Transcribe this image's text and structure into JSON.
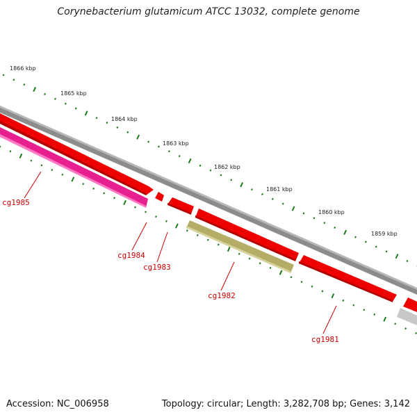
{
  "title": "Corynebacterium glutamicum ATCC 13032, complete genome",
  "ruler": {
    "labels": [
      "1866 kbp",
      "1865 kbp",
      "1864 kbp",
      "1863 kbp",
      "1862 kbp",
      "1861 kbp",
      "1860 kbp",
      "1859 kbp"
    ]
  },
  "genes": [
    {
      "id": "cg1985",
      "color": "#e8208f"
    },
    {
      "id": "cg1984",
      "color": "#ee0000"
    },
    {
      "id": "cg1983",
      "color": "#ee0000"
    },
    {
      "id": "cg1982",
      "color": "#b5ad65"
    },
    {
      "id": "cg1981",
      "color": "#ee0000"
    }
  ],
  "colors": {
    "cds": "#ee0000",
    "label": "#cc0000",
    "tick": "#1a7a1a",
    "backbone": "#8c8c8c",
    "other_feature": "#c8c8c8"
  },
  "footer": {
    "accession": "Accession: NC_006958",
    "topology": "Topology: circular; Length: 3,282,708 bp; Genes: 3,142"
  }
}
